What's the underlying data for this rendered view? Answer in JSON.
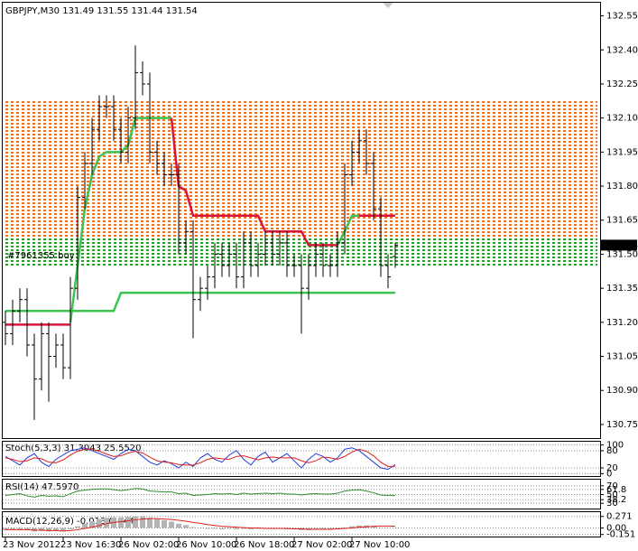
{
  "chart_data": [
    {
      "type": "candlestick",
      "title": "GBPJPY,M30  131.49 131.55 131.44 131.54",
      "categories": [
        "23 Nov 2012",
        null,
        null,
        null,
        null,
        null,
        null,
        null,
        "23 Nov 16:30",
        null,
        null,
        null,
        null,
        null,
        null,
        null,
        "26 Nov 02:00",
        null,
        null,
        null,
        null,
        null,
        null,
        null,
        "26 Nov 10:00",
        null,
        null,
        null,
        null,
        null,
        null,
        null,
        "26 Nov 18:00",
        null,
        null,
        null,
        null,
        null,
        null,
        null,
        "27 Nov 02:00",
        null,
        null,
        null,
        null,
        null,
        null,
        null,
        "27 Nov 10:00",
        null,
        null,
        null,
        null,
        null,
        null
      ],
      "open": [
        131.2,
        131.15,
        131.25,
        131.3,
        131.1,
        130.95,
        131.15,
        131.05,
        131.1,
        131.0,
        131.35,
        131.75,
        131.9,
        132.05,
        132.15,
        132.15,
        132.05,
        131.95,
        132.1,
        132.3,
        132.25,
        131.95,
        131.9,
        131.85,
        131.85,
        131.55,
        131.6,
        131.3,
        131.35,
        131.4,
        131.5,
        131.45,
        131.5,
        131.4,
        131.55,
        131.45,
        131.5,
        131.55,
        131.5,
        131.55,
        131.45,
        131.45,
        131.35,
        131.45,
        131.5,
        131.45,
        131.45,
        131.55,
        131.85,
        131.95,
        132.0,
        131.9,
        131.7,
        131.45,
        131.49
      ],
      "high": [
        131.25,
        131.3,
        131.35,
        131.35,
        131.15,
        131.2,
        131.2,
        131.15,
        131.15,
        131.4,
        131.8,
        131.95,
        132.1,
        132.2,
        132.2,
        132.2,
        132.1,
        132.15,
        132.42,
        132.35,
        132.3,
        132.0,
        131.95,
        131.9,
        131.9,
        131.65,
        131.65,
        131.4,
        131.45,
        131.55,
        131.55,
        131.55,
        131.55,
        131.6,
        131.6,
        131.55,
        131.6,
        131.6,
        131.6,
        131.6,
        131.5,
        131.5,
        131.5,
        131.55,
        131.55,
        131.5,
        131.6,
        131.9,
        132.0,
        132.05,
        132.05,
        131.95,
        131.75,
        131.5,
        131.55
      ],
      "low": [
        131.1,
        131.1,
        131.2,
        131.05,
        130.77,
        130.9,
        130.85,
        131.0,
        130.95,
        130.95,
        131.3,
        131.7,
        131.85,
        132.0,
        132.1,
        132.0,
        131.9,
        131.9,
        132.05,
        132.2,
        131.9,
        131.85,
        131.8,
        131.8,
        131.5,
        131.5,
        131.13,
        131.25,
        131.3,
        131.35,
        131.4,
        131.4,
        131.35,
        131.35,
        131.4,
        131.4,
        131.45,
        131.45,
        131.45,
        131.4,
        131.4,
        131.15,
        131.3,
        131.4,
        131.4,
        131.4,
        131.4,
        131.5,
        131.8,
        131.9,
        131.85,
        131.65,
        131.4,
        131.35,
        131.44
      ],
      "close": [
        131.15,
        131.25,
        131.3,
        131.1,
        130.95,
        131.15,
        131.05,
        131.1,
        131.0,
        131.35,
        131.75,
        131.9,
        132.05,
        132.15,
        132.15,
        132.05,
        131.95,
        132.1,
        132.3,
        132.25,
        131.95,
        131.9,
        131.85,
        131.85,
        131.55,
        131.6,
        131.3,
        131.35,
        131.4,
        131.5,
        131.45,
        131.5,
        131.4,
        131.55,
        131.45,
        131.5,
        131.55,
        131.5,
        131.55,
        131.45,
        131.45,
        131.35,
        131.45,
        131.5,
        131.45,
        131.45,
        131.55,
        131.85,
        131.95,
        132.0,
        131.9,
        131.7,
        131.45,
        131.4,
        131.54
      ],
      "color": "#000000",
      "lines": [
        {
          "color": "#3cc453",
          "values": [
            131.25,
            131.25,
            131.25,
            131.25,
            131.25,
            131.25,
            131.25,
            131.25,
            131.25,
            131.25,
            131.25,
            131.25,
            131.25,
            131.25,
            131.25,
            131.25,
            131.33,
            131.33,
            131.33,
            131.33,
            131.33,
            131.33,
            131.33,
            131.33,
            131.33,
            131.33,
            131.33,
            131.33,
            131.33,
            131.33,
            131.33,
            131.33,
            131.33,
            131.33,
            131.33,
            131.33,
            131.33,
            131.33,
            131.33,
            131.33,
            131.33,
            131.33,
            131.33,
            131.33,
            131.33,
            131.33,
            131.33,
            131.33,
            131.33,
            131.33,
            131.33,
            131.33,
            131.33,
            131.33,
            131.33
          ]
        },
        {
          "color": "#3cc453",
          "values": [
            null,
            null,
            null,
            null,
            null,
            null,
            null,
            null,
            null,
            131.2,
            131.45,
            131.7,
            131.85,
            131.93,
            131.95,
            131.95,
            131.95,
            131.98,
            132.1,
            132.1,
            132.1,
            132.1,
            132.1,
            132.1,
            null,
            null,
            null,
            null,
            null,
            null,
            null,
            null,
            null,
            null,
            null,
            null,
            null,
            null,
            null,
            null,
            null,
            null,
            null,
            null,
            null,
            null,
            131.54,
            131.6,
            131.67,
            131.67,
            null,
            null,
            null,
            null,
            null
          ]
        },
        {
          "color": "#dc143c",
          "values": [
            131.19,
            131.19,
            131.19,
            131.19,
            131.19,
            131.19,
            131.19,
            131.19,
            131.19,
            131.19,
            null,
            null,
            null,
            null,
            null,
            null,
            null,
            null,
            null,
            null,
            null,
            null,
            null,
            132.1,
            131.8,
            131.78,
            131.67,
            131.67,
            131.67,
            131.67,
            131.67,
            131.67,
            131.67,
            131.67,
            131.67,
            131.67,
            131.6,
            131.6,
            131.6,
            131.6,
            131.6,
            131.6,
            131.54,
            131.54,
            131.54,
            131.54,
            131.54,
            null,
            null,
            131.67,
            131.67,
            131.67,
            131.67,
            131.67,
            131.67
          ]
        }
      ],
      "orders_label": "#7961355 buy",
      "ylim": [
        130.69,
        132.6
      ],
      "yticks": [
        130.75,
        {
          "value": 130.9,
          "label": "130.90"
        },
        131.05,
        {
          "value": 131.2,
          "label": "131.20"
        },
        131.35,
        {
          "value": 131.5,
          "label": "131.50"
        },
        131.65,
        {
          "value": 131.8,
          "label": "131.80"
        },
        131.95,
        {
          "value": 132.1,
          "label": "132.10"
        },
        132.25,
        {
          "value": 132.4,
          "label": "132.40"
        },
        132.55
      ]
    },
    {
      "type": "line",
      "title": "Stoch(5,3,3) 31.3043 25.5520",
      "series": [
        {
          "color": "#1f3fd6",
          "values": [
            60,
            45,
            30,
            55,
            70,
            40,
            25,
            50,
            65,
            80,
            85,
            90,
            80,
            70,
            60,
            50,
            70,
            85,
            80,
            60,
            40,
            30,
            45,
            35,
            20,
            40,
            25,
            55,
            70,
            50,
            40,
            65,
            80,
            50,
            30,
            60,
            75,
            40,
            55,
            70,
            45,
            20,
            50,
            70,
            60,
            40,
            55,
            85,
            90,
            80,
            60,
            40,
            20,
            15,
            31.3043
          ]
        },
        {
          "color": "#e0201c",
          "values": [
            55,
            50,
            42,
            45,
            55,
            52,
            40,
            38,
            48,
            65,
            78,
            85,
            85,
            78,
            68,
            60,
            62,
            72,
            78,
            72,
            58,
            45,
            40,
            38,
            32,
            30,
            30,
            38,
            50,
            55,
            52,
            50,
            60,
            62,
            55,
            48,
            55,
            58,
            55,
            55,
            55,
            45,
            38,
            45,
            58,
            55,
            50,
            60,
            75,
            85,
            78,
            62,
            40,
            25,
            25.552
          ]
        }
      ],
      "ylim": [
        -5,
        105
      ],
      "yticks": [
        0,
        20,
        80,
        100
      ]
    },
    {
      "type": "line",
      "title": "RSI(14) 47.5970",
      "series": [
        {
          "color": "#2e8b2e",
          "values": [
            48,
            50,
            52,
            47,
            44,
            48,
            46,
            47,
            45,
            52,
            58,
            60,
            62,
            63,
            63,
            61,
            59,
            61,
            64,
            63,
            58,
            57,
            56,
            56,
            52,
            53,
            48,
            49,
            50,
            52,
            51,
            52,
            50,
            53,
            51,
            52,
            53,
            52,
            53,
            51,
            51,
            49,
            51,
            52,
            51,
            51,
            53,
            58,
            60,
            61,
            58,
            54,
            49,
            48,
            47.597
          ]
        }
      ],
      "ylim": [
        20,
        80
      ],
      "yticks": [
        30,
        38.2,
        50,
        61.8,
        70
      ]
    },
    {
      "type": "macd",
      "title": "MACD(12,26,9) -0.013 0.044",
      "values": [
        -0.05,
        -0.04,
        -0.03,
        -0.05,
        -0.08,
        -0.07,
        -0.08,
        -0.07,
        -0.08,
        -0.03,
        0.04,
        0.1,
        0.16,
        0.21,
        0.24,
        0.25,
        0.25,
        0.26,
        0.27,
        0.27,
        0.24,
        0.21,
        0.18,
        0.15,
        0.1,
        0.07,
        0.02,
        0.0,
        -0.02,
        -0.02,
        -0.03,
        -0.02,
        -0.03,
        -0.02,
        -0.03,
        -0.02,
        -0.02,
        -0.02,
        -0.02,
        -0.03,
        -0.03,
        -0.05,
        -0.05,
        -0.04,
        -0.04,
        -0.04,
        -0.03,
        0.01,
        0.04,
        0.06,
        0.06,
        0.04,
        0.01,
        -0.01,
        -0.013
      ],
      "color": "#b4b4b4",
      "series": [
        {
          "color": "#e0201c",
          "values": [
            -0.04,
            -0.04,
            -0.04,
            -0.04,
            -0.05,
            -0.05,
            -0.06,
            -0.06,
            -0.07,
            -0.06,
            -0.04,
            -0.01,
            0.02,
            0.06,
            0.1,
            0.13,
            0.15,
            0.17,
            0.19,
            0.21,
            0.22,
            0.22,
            0.21,
            0.2,
            0.18,
            0.16,
            0.13,
            0.11,
            0.08,
            0.06,
            0.04,
            0.03,
            0.02,
            0.01,
            0.0,
            0.0,
            -0.01,
            -0.01,
            -0.01,
            -0.01,
            -0.02,
            -0.02,
            -0.03,
            -0.03,
            -0.03,
            -0.03,
            -0.02,
            -0.01,
            0.0,
            0.02,
            0.03,
            0.04,
            0.045,
            0.045,
            0.044
          ]
        }
      ],
      "ylim": [
        -0.2,
        0.35
      ],
      "yticks": [
        0.271,
        {
          "value": 0,
          "label": "0.00"
        },
        -0.151
      ]
    }
  ]
}
